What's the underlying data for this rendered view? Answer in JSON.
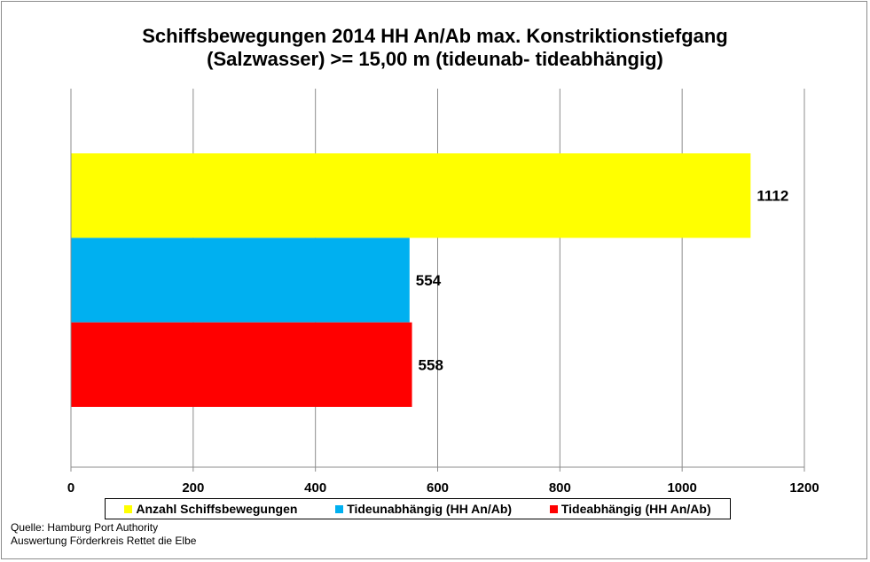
{
  "chart_data": {
    "type": "bar",
    "orientation": "horizontal",
    "title": "Schiffsbewegungen 2014 HH An/Ab max. Konstriktionstiefgang",
    "subtitle": "(Salzwasser) >= 15,00 m (tideunab- tideabhängig)",
    "series": [
      {
        "name": "Anzahl Schiffsbewegungen",
        "values": [
          1112
        ],
        "color": "#FFFF00"
      },
      {
        "name": "Tideunabhängig (HH An/Ab)",
        "values": [
          554
        ],
        "color": "#00B0F0"
      },
      {
        "name": "Tideabhängig (HH An/Ab)",
        "values": [
          558
        ],
        "color": "#FF0000"
      }
    ],
    "data_labels": [
      "1112",
      "554",
      "558"
    ],
    "xlim": [
      0,
      1200
    ],
    "xticks": [
      0,
      200,
      400,
      600,
      800,
      1000,
      1200
    ],
    "xtick_labels": [
      "0",
      "200",
      "400",
      "600",
      "800",
      "1000",
      "1200"
    ],
    "grid": "vertical",
    "legend_position": "bottom"
  },
  "source": {
    "line1": "Quelle: Hamburg Port Authority",
    "line2": "Auswertung Förderkreis Rettet  die Elbe"
  }
}
